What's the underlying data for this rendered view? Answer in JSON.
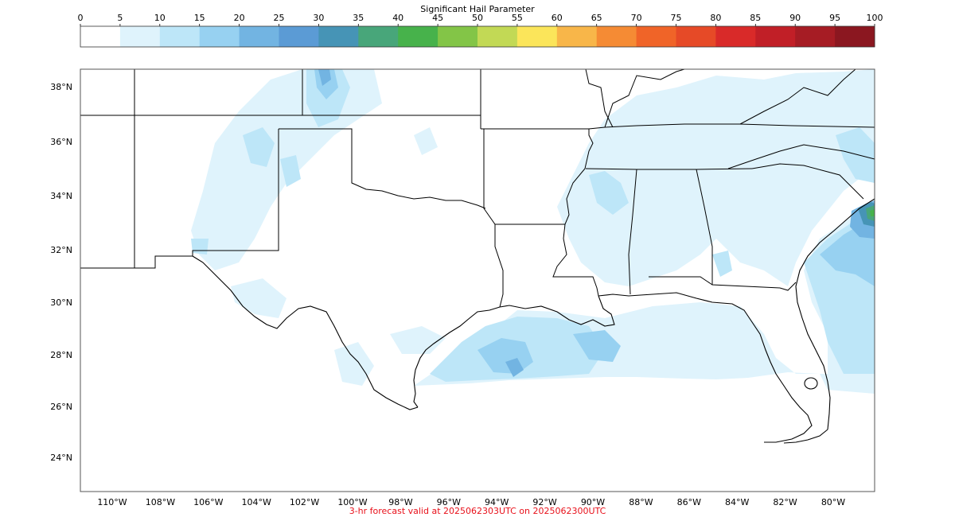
{
  "colorbar": {
    "title": "Significant Hail Parameter",
    "ticks": [
      "0",
      "5",
      "10",
      "15",
      "20",
      "25",
      "30",
      "35",
      "40",
      "45",
      "50",
      "55",
      "60",
      "65",
      "70",
      "75",
      "80",
      "85",
      "90",
      "95",
      "100"
    ],
    "colors": [
      "#ffffff",
      "#dff3fc",
      "#bde6f8",
      "#97d1f1",
      "#72b4e2",
      "#5b9bd5",
      "#4694b6",
      "#48a67a",
      "#47b24b",
      "#83c547",
      "#c2d955",
      "#fbe55a",
      "#f8b649",
      "#f58b34",
      "#f06428",
      "#e64a27",
      "#d92a29",
      "#c11f27",
      "#a61c24",
      "#8b1720"
    ]
  },
  "map": {
    "lat_labels": [
      "38°N",
      "36°N",
      "34°N",
      "32°N",
      "30°N",
      "28°N",
      "26°N",
      "24°N"
    ],
    "lon_labels": [
      "110°W",
      "108°W",
      "106°W",
      "104°W",
      "102°W",
      "100°W",
      "98°W",
      "96°W",
      "94°W",
      "92°W",
      "90°W",
      "88°W",
      "86°W",
      "84°W",
      "82°W",
      "80°W"
    ],
    "fill_colors": {
      "level1": "#dff3fc",
      "level2": "#bde6f8",
      "level3": "#97d1f1",
      "level4": "#72b4e2",
      "level5": "#5b9bd5",
      "level6": "#4694b6",
      "level7": "#48a67a",
      "level8": "#47b24b"
    }
  },
  "footer": {
    "text": "3-hr forecast valid at 2025062303UTC on 2025062300UTC",
    "color": "#e8101a"
  }
}
